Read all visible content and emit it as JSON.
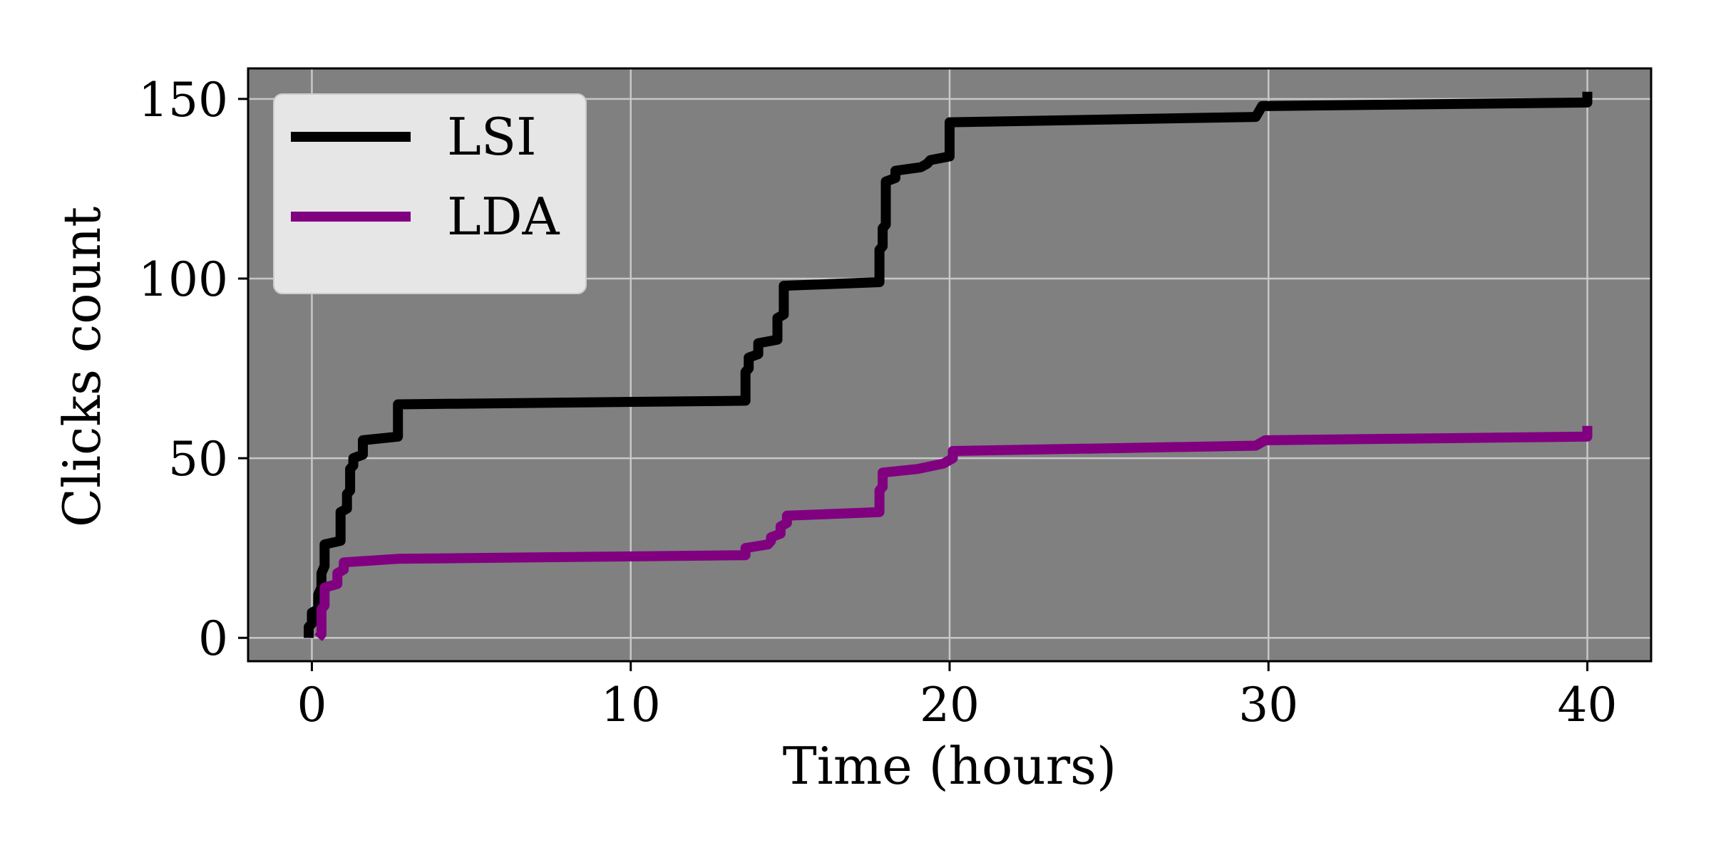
{
  "chart_data": {
    "type": "line",
    "xlabel": "Time (hours)",
    "ylabel": "Clicks count",
    "xlim": [
      -2,
      42
    ],
    "ylim": [
      -6.5,
      158.5
    ],
    "xticks": [
      0,
      10,
      20,
      30,
      40
    ],
    "yticks": [
      0,
      50,
      100,
      150
    ],
    "grid": true,
    "legend_position": "top-left",
    "plot_background": "#808080",
    "grid_color": "#c8c8c8",
    "series": [
      {
        "name": "LSI",
        "color": "#000000",
        "points": [
          [
            -0.1,
            0
          ],
          [
            -0.1,
            3
          ],
          [
            0.0,
            4
          ],
          [
            0.0,
            7
          ],
          [
            0.2,
            8
          ],
          [
            0.2,
            12
          ],
          [
            0.3,
            14
          ],
          [
            0.3,
            18
          ],
          [
            0.4,
            20
          ],
          [
            0.4,
            26
          ],
          [
            0.9,
            27
          ],
          [
            0.9,
            35
          ],
          [
            1.1,
            36
          ],
          [
            1.1,
            40
          ],
          [
            1.2,
            41
          ],
          [
            1.2,
            47
          ],
          [
            1.3,
            48
          ],
          [
            1.3,
            50
          ],
          [
            1.6,
            51
          ],
          [
            1.6,
            55
          ],
          [
            2.7,
            56
          ],
          [
            2.7,
            65
          ],
          [
            13.6,
            66
          ],
          [
            13.6,
            74
          ],
          [
            13.7,
            75
          ],
          [
            13.7,
            78
          ],
          [
            14.0,
            79
          ],
          [
            14.0,
            82
          ],
          [
            14.6,
            83
          ],
          [
            14.6,
            89
          ],
          [
            14.8,
            90
          ],
          [
            14.8,
            98
          ],
          [
            17.8,
            99
          ],
          [
            17.8,
            108
          ],
          [
            17.9,
            109
          ],
          [
            17.9,
            114
          ],
          [
            18.0,
            115
          ],
          [
            18.0,
            127
          ],
          [
            18.3,
            128
          ],
          [
            18.3,
            130
          ],
          [
            19.1,
            131
          ],
          [
            19.3,
            132
          ],
          [
            19.4,
            133
          ],
          [
            20.0,
            134
          ],
          [
            20.0,
            143.5
          ],
          [
            29.6,
            145
          ],
          [
            29.8,
            148
          ],
          [
            40.0,
            149
          ],
          [
            40.0,
            152
          ]
        ]
      },
      {
        "name": "LDA",
        "color": "#800080",
        "points": [
          [
            0.2,
            0
          ],
          [
            0.3,
            1
          ],
          [
            0.3,
            8
          ],
          [
            0.4,
            9
          ],
          [
            0.4,
            14
          ],
          [
            0.8,
            15
          ],
          [
            0.8,
            18
          ],
          [
            1.0,
            19
          ],
          [
            1.0,
            21
          ],
          [
            2.7,
            22
          ],
          [
            13.6,
            23
          ],
          [
            13.6,
            25
          ],
          [
            14.3,
            26
          ],
          [
            14.4,
            27
          ],
          [
            14.4,
            28
          ],
          [
            14.7,
            29
          ],
          [
            14.7,
            31
          ],
          [
            14.9,
            32
          ],
          [
            14.9,
            34
          ],
          [
            17.8,
            35
          ],
          [
            17.8,
            41
          ],
          [
            17.9,
            42
          ],
          [
            17.9,
            46
          ],
          [
            19.0,
            47
          ],
          [
            19.8,
            48.5
          ],
          [
            20.1,
            50
          ],
          [
            20.1,
            52
          ],
          [
            29.6,
            53.5
          ],
          [
            29.9,
            55
          ],
          [
            40.0,
            56
          ],
          [
            40.0,
            59
          ]
        ]
      }
    ]
  }
}
